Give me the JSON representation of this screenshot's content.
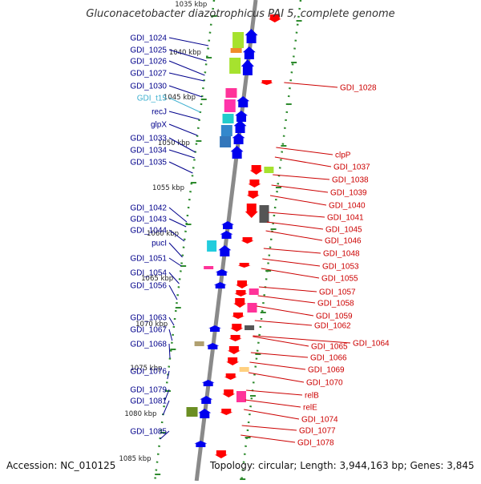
{
  "title": "Gluconacetobacter diazotrophicus PAI 5, complete genome",
  "accession_text": "Accession: NC_010125",
  "summary_text": "Topology: circular; Length: 3,944,163 bp; Genes: 3,845",
  "colors": {
    "backbone": "#8a8a8a",
    "track_dots": "#2e8b2e",
    "left_label": "#00008b",
    "right_label": "#cc0000",
    "trna_label": "#3fb0d0"
  },
  "scale_labels": [
    "1035 kbp",
    "1040 kbp",
    "1045 kbp",
    "1050 kbp",
    "1055 kbp",
    "1060 kbp",
    "1065 kbp",
    "1070 kbp",
    "1075 kbp",
    "1080 kbp",
    "1085 kbp"
  ],
  "left_genes": [
    {
      "label": "GDI_1024",
      "kind": "cds"
    },
    {
      "label": "GDI_1025",
      "kind": "cds"
    },
    {
      "label": "GDI_1026",
      "kind": "cds"
    },
    {
      "label": "GDI_1027",
      "kind": "cds"
    },
    {
      "label": "GDI_1030",
      "kind": "cds"
    },
    {
      "label": "GDI_t15",
      "kind": "trna"
    },
    {
      "label": "recJ",
      "kind": "cds"
    },
    {
      "label": "glpX",
      "kind": "cds"
    },
    {
      "label": "GDI_1033",
      "kind": "cds"
    },
    {
      "label": "GDI_1034",
      "kind": "cds"
    },
    {
      "label": "GDI_1035",
      "kind": "cds"
    },
    {
      "label": "GDI_1042",
      "kind": "cds"
    },
    {
      "label": "GDI_1043",
      "kind": "cds"
    },
    {
      "label": "GDI_1044",
      "kind": "cds"
    },
    {
      "label": "pucI",
      "kind": "cds"
    },
    {
      "label": "GDI_1051",
      "kind": "cds"
    },
    {
      "label": "GDI_1054",
      "kind": "cds"
    },
    {
      "label": "GDI_1056",
      "kind": "cds"
    },
    {
      "label": "GDI_1063",
      "kind": "cds"
    },
    {
      "label": "GDI_1067",
      "kind": "cds"
    },
    {
      "label": "GDI_1068",
      "kind": "cds"
    },
    {
      "label": "GDI_1076",
      "kind": "cds"
    },
    {
      "label": "GDI_1079",
      "kind": "cds"
    },
    {
      "label": "GDI_1081",
      "kind": "cds"
    },
    {
      "label": "GDI_1085",
      "kind": "cds"
    }
  ],
  "right_genes": [
    {
      "label": "GDI_1028"
    },
    {
      "label": "clpP"
    },
    {
      "label": "GDI_1037"
    },
    {
      "label": "GDI_1038"
    },
    {
      "label": "GDI_1039"
    },
    {
      "label": "GDI_1040"
    },
    {
      "label": "GDI_1041"
    },
    {
      "label": "GDI_1045"
    },
    {
      "label": "GDI_1046"
    },
    {
      "label": "GDI_1048"
    },
    {
      "label": "GDI_1053"
    },
    {
      "label": "GDI_1055"
    },
    {
      "label": "GDI_1057"
    },
    {
      "label": "GDI_1058"
    },
    {
      "label": "GDI_1059"
    },
    {
      "label": "GDI_1062"
    },
    {
      "label": "GDI_1064"
    },
    {
      "label": "GDI_1065"
    },
    {
      "label": "GDI_1066"
    },
    {
      "label": "GDI_1069"
    },
    {
      "label": "GDI_1070"
    },
    {
      "label": "relB"
    },
    {
      "label": "relE"
    },
    {
      "label": "GDI_1074"
    },
    {
      "label": "GDI_1077"
    },
    {
      "label": "GDI_1078"
    }
  ]
}
